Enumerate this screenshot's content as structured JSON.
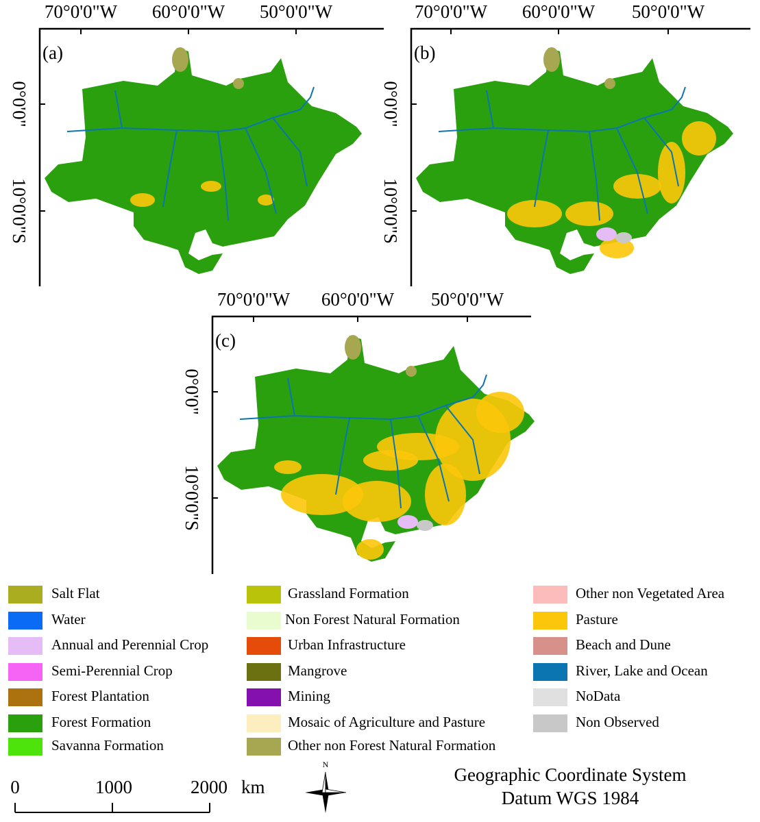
{
  "panels": [
    {
      "label": "(a)",
      "lon_labels": [
        "70°0'0\"W",
        "60°0'0\"W",
        "50°0'0\"W"
      ],
      "lat_labels": [
        "0°0'0\"",
        "10°0'0\"S"
      ]
    },
    {
      "label": "(b)",
      "lon_labels": [
        "70°0'0\"W",
        "60°0'0\"W",
        "50°0'0\"W"
      ],
      "lat_labels": [
        "0°0'0\"",
        "10°0'0\"S"
      ]
    },
    {
      "label": "(c)",
      "lon_labels": [
        "70°0'0\"W",
        "60°0'0\"W",
        "50°0'0\"W"
      ],
      "lat_labels": [
        "0°0'0\"",
        "10°0'0\"S"
      ]
    }
  ],
  "legend": [
    {
      "name": "Salt Flat",
      "color": "#a9ad1f"
    },
    {
      "name": "Water",
      "color": "#0a6cf5"
    },
    {
      "name": "Annual and Perennial Crop",
      "color": "#e5bcf5"
    },
    {
      "name": "Semi-Perennial Crop",
      "color": "#f564f5"
    },
    {
      "name": "Forest Plantation",
      "color": "#ad7210"
    },
    {
      "name": "Forest Formation",
      "color": "#2aa00f"
    },
    {
      "name": "Savanna Formation",
      "color": "#4ce40a"
    },
    {
      "name": "Grassland Formation",
      "color": "#b8c30a"
    },
    {
      "name": "Non Forest Natural Formation",
      "color": "#e8fcd0"
    },
    {
      "name": "Urban Infrastructure",
      "color": "#e54c0a"
    },
    {
      "name": "Mangrove",
      "color": "#6b7010"
    },
    {
      "name": "Mining",
      "color": "#8410ad"
    },
    {
      "name": "Mosaic of Agriculture and Pasture",
      "color": "#fdeec0"
    },
    {
      "name": "Other non Forest Natural Formation",
      "color": "#a7a651"
    },
    {
      "name": "Other non Vegetated Area",
      "color": "#fcbcbc"
    },
    {
      "name": "Pasture",
      "color": "#fcc70a"
    },
    {
      "name": "Beach and Dune",
      "color": "#d6928a"
    },
    {
      "name": "River, Lake and Ocean",
      "color": "#0a75b0"
    },
    {
      "name": "NoData",
      "color": "#e0e0e0"
    },
    {
      "name": "Non Observed",
      "color": "#c8c8c8"
    }
  ],
  "scale_bar": {
    "labels": [
      0,
      1000,
      2000
    ],
    "unit": "km"
  },
  "north_arrow": "N",
  "crs": [
    "Geographic Coordinate System",
    "Datum WGS 1984"
  ]
}
